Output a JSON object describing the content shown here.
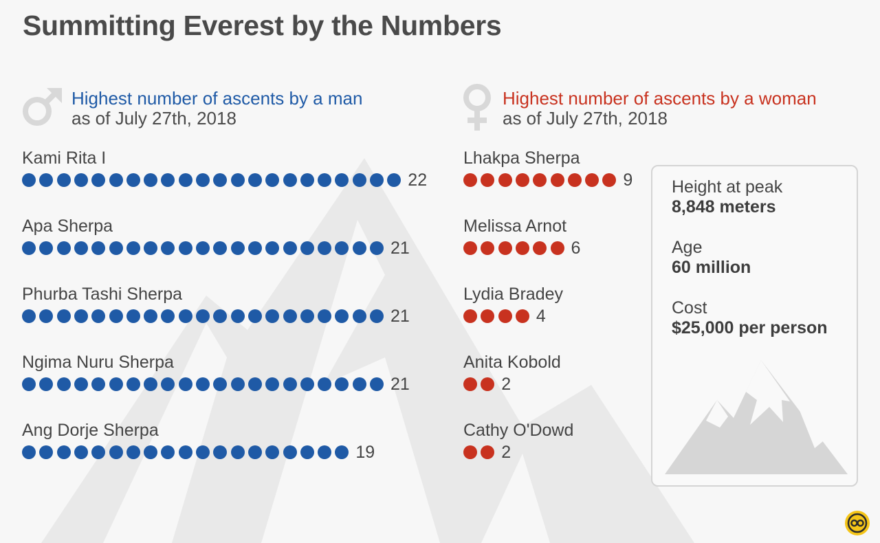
{
  "title": "Summitting Everest by the Numbers",
  "colors": {
    "men": "#1f5aa6",
    "women": "#c8321f",
    "background_mountain": "#e6e6e6",
    "gender_icon": "#d8d8d8"
  },
  "chart_data": [
    {
      "type": "bar",
      "style": "dot-count",
      "title": "Highest number of ascents by a man",
      "subtitle": "as of July 27th, 2018",
      "categories": [
        "Kami Rita I",
        "Apa Sherpa",
        "Phurba Tashi Sherpa",
        "Ngima Nuru Sherpa",
        "Ang Dorje Sherpa"
      ],
      "values": [
        22,
        21,
        21,
        21,
        19
      ],
      "value_labels": [
        "22",
        "21",
        "21",
        "21",
        "19"
      ],
      "icon": "male-symbol-icon",
      "color": "#1f5aa6"
    },
    {
      "type": "bar",
      "style": "dot-count",
      "title": "Highest number of ascents by a woman",
      "subtitle": "as of July 27th, 2018",
      "categories": [
        "Lhakpa Sherpa",
        "Melissa Arnot",
        "Lydia Bradey",
        "Anita Kobold",
        "Cathy O'Dowd"
      ],
      "values": [
        9,
        6,
        4,
        2,
        2
      ],
      "value_labels": [
        "9",
        "6",
        "4",
        "2",
        "2"
      ],
      "icon": "female-symbol-icon",
      "color": "#c8321f"
    }
  ],
  "facts": [
    {
      "label": "Height at peak",
      "value": "8,848 meters"
    },
    {
      "label": "Age",
      "value": "60 million"
    },
    {
      "label": "Cost",
      "value": "$25,000 per person"
    }
  ],
  "icons": {
    "men": "male-symbol-icon",
    "women": "female-symbol-icon",
    "facts_illustration": "mountain-icon",
    "brand": "statista-logo-icon"
  }
}
